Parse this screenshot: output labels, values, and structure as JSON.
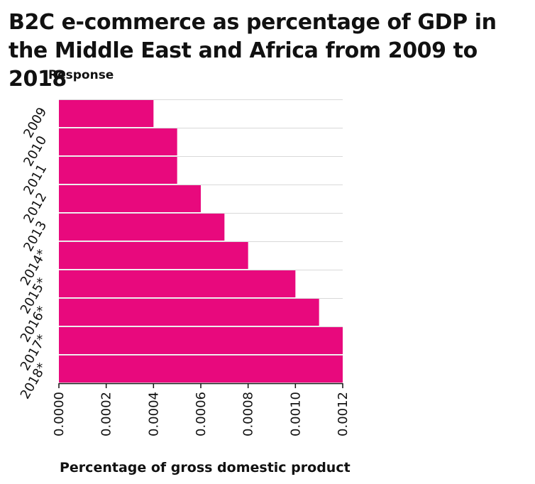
{
  "chart_data": {
    "type": "bar",
    "orientation": "horizontal",
    "title": "B2C e-commerce as percentage of GDP in the Middle East and Africa from 2009 to 2018",
    "ylabel": "Response",
    "xlabel": "Percentage of gross domestic product",
    "categories": [
      "2009",
      "2010",
      "2011",
      "2012",
      "2013",
      "2014*",
      "2015*",
      "2016*",
      "2017*",
      "2018*"
    ],
    "values": [
      0.0004,
      0.0005,
      0.0005,
      0.0006,
      0.0007,
      0.0008,
      0.001,
      0.0011,
      0.0012,
      0.0012
    ],
    "xlim": [
      0,
      0.0012
    ],
    "xticks": [
      "0.0000",
      "0.0002",
      "0.0004",
      "0.0006",
      "0.0008",
      "0.0010",
      "0.0012"
    ],
    "grid": true,
    "bar_color": "#e8097d",
    "grid_color": "#d9d9d9",
    "axis_color": "#111111"
  }
}
